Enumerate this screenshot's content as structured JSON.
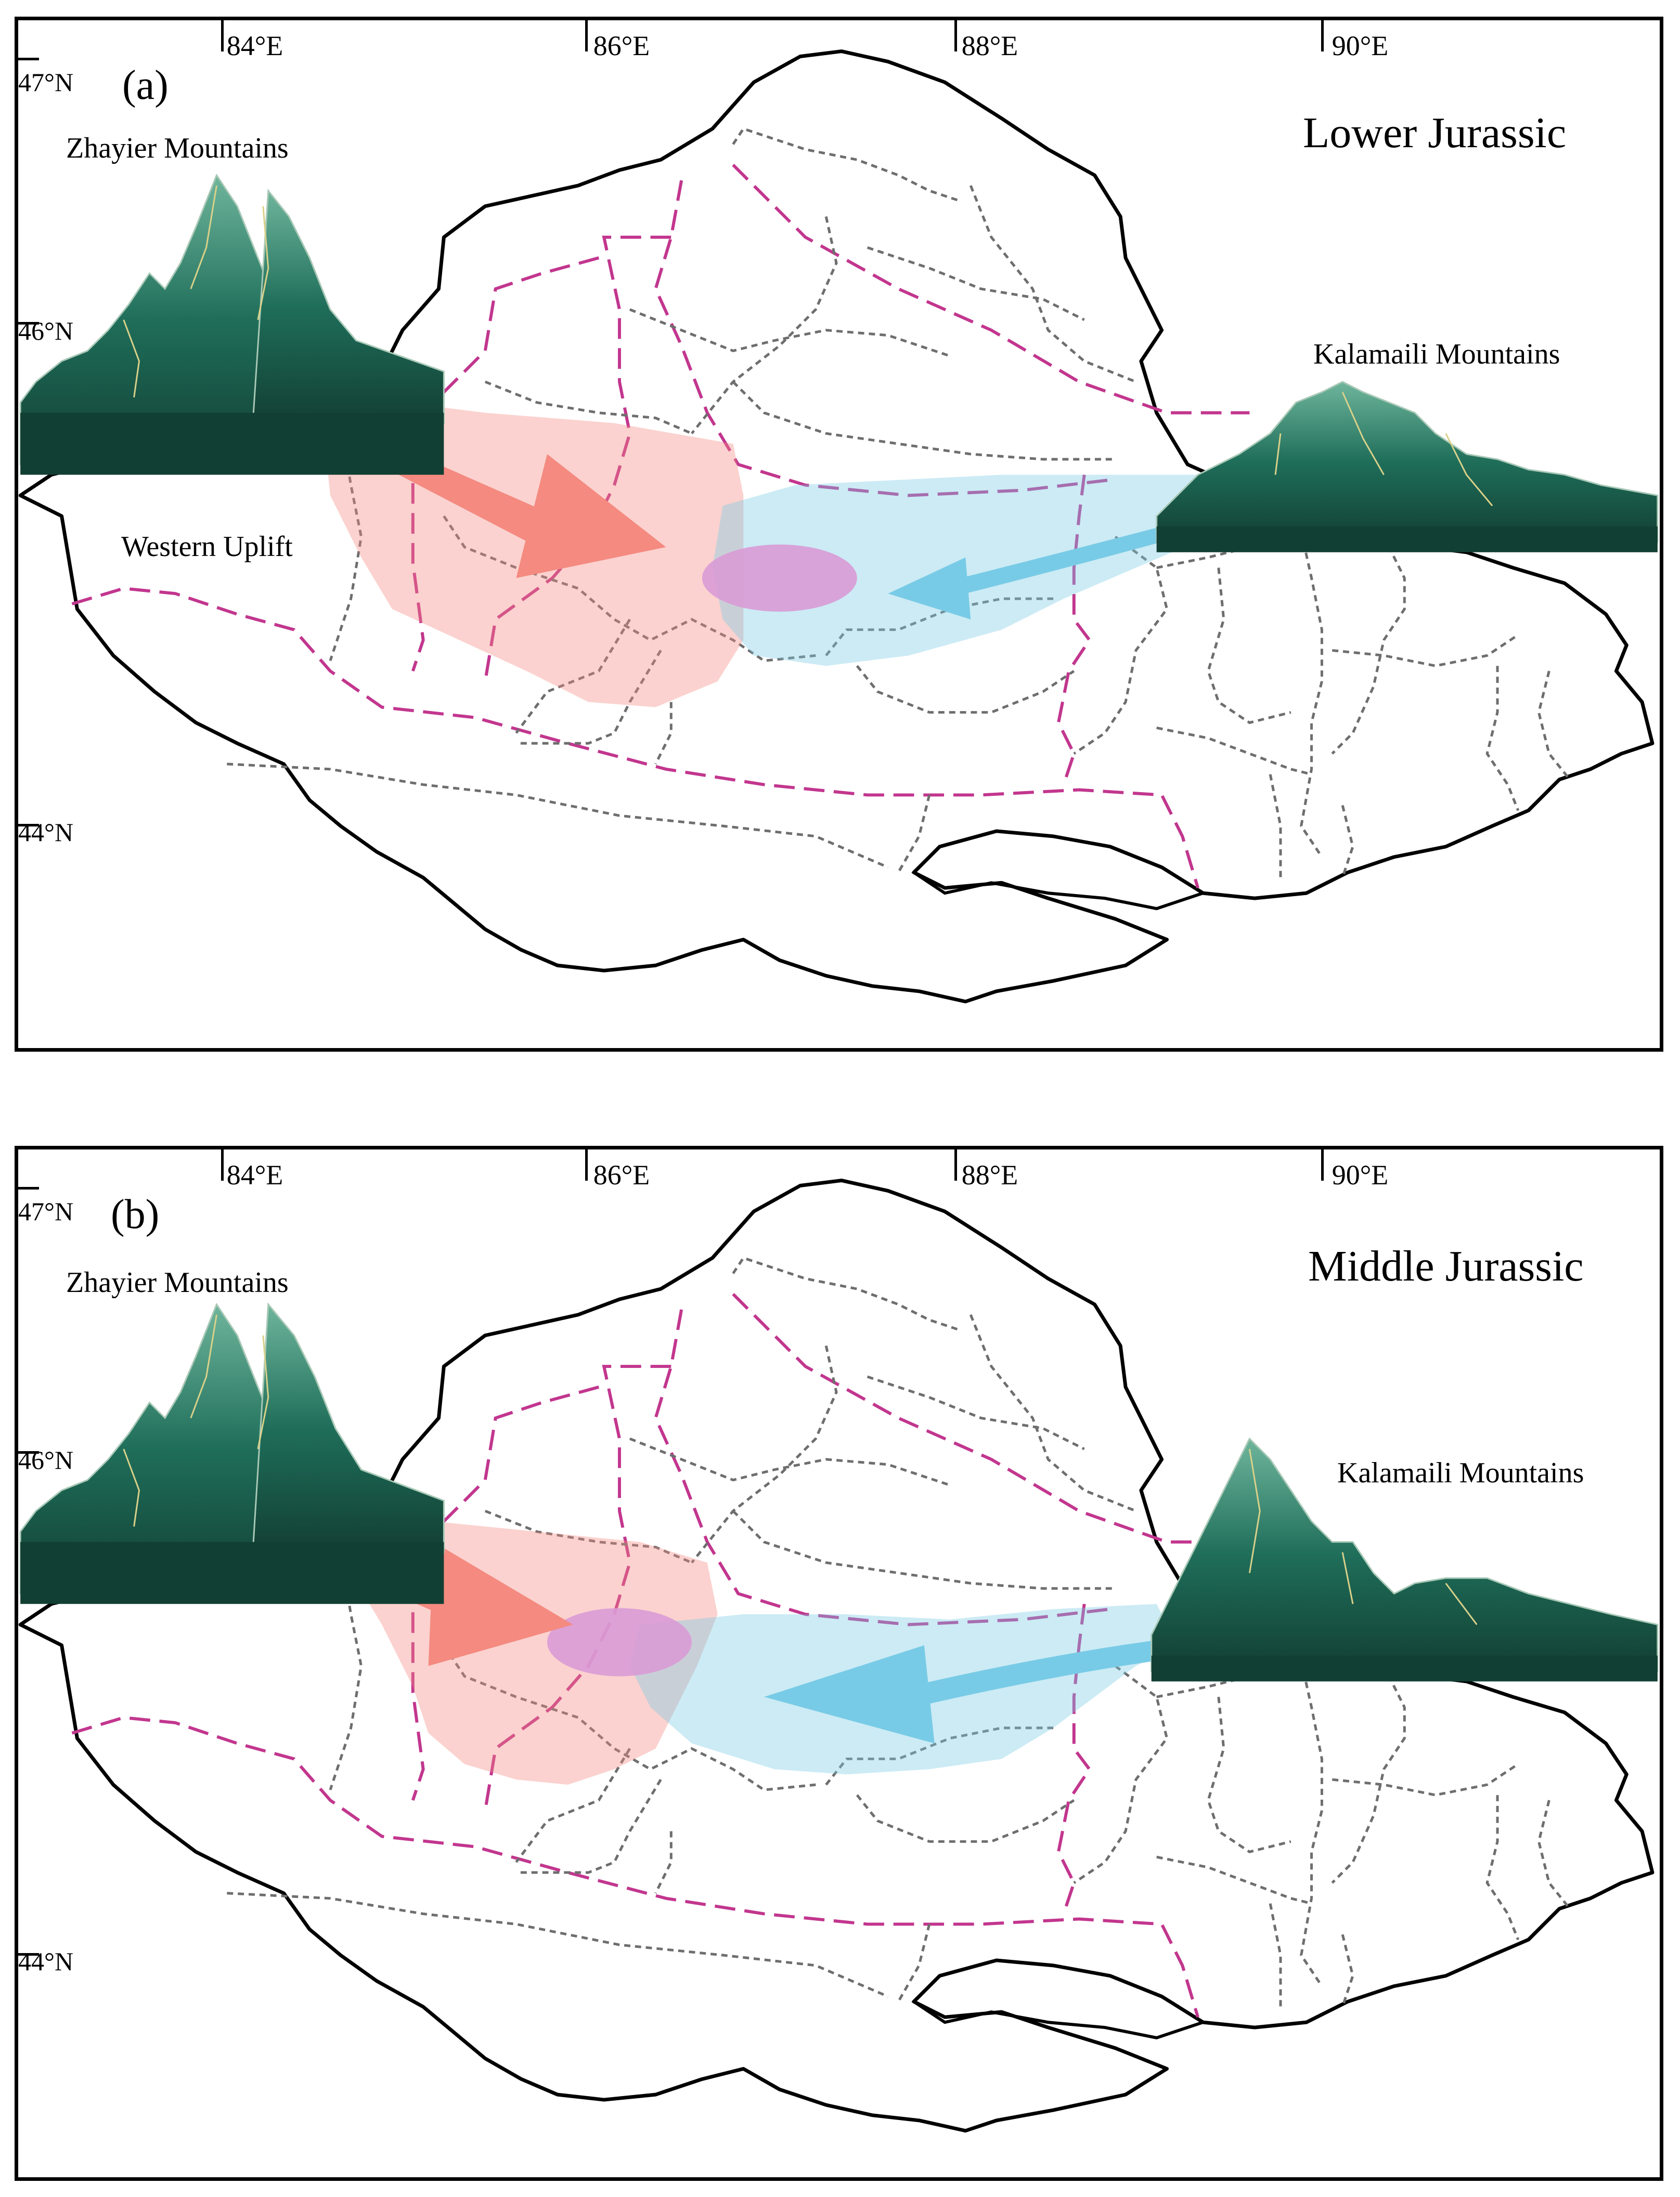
{
  "figure": {
    "panels": [
      {
        "id": "a",
        "panel_label": "(a)",
        "period": "Lower Jurassic",
        "lon_labels": [
          "84°E",
          "86°E",
          "88°E",
          "90°E"
        ],
        "lat_labels": [
          "47°N",
          "46°N",
          "44°N"
        ],
        "mountain_west": "Zhayier Mountains",
        "mountain_east": "Kalamaili Mountains",
        "uplift": "Western Uplift"
      },
      {
        "id": "b",
        "panel_label": "(b)",
        "period": "Middle Jurassic",
        "lon_labels": [
          "84°E",
          "86°E",
          "88°E",
          "90°E"
        ],
        "lat_labels": [
          "47°N",
          "46°N",
          "44°N"
        ],
        "mountain_west": "Zhayier Mountains",
        "mountain_east": "Kalamaili Mountains"
      }
    ],
    "colors": {
      "basin_outline": "#000000",
      "fault_lines": "#c2368e",
      "structural_units": "#6e6e6e",
      "western_provenance": "#f48a80",
      "western_fan": "#f8d0cb",
      "eastern_provenance": "#78cbe6",
      "eastern_fan": "#c9e6f2",
      "depocenter": "#d99bd6",
      "mountains": "#1f6e5a"
    },
    "icons": [
      "mountain-icon",
      "arrow-icon"
    ]
  }
}
